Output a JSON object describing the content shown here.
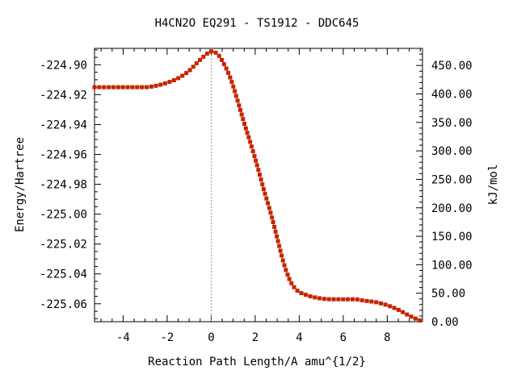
{
  "chart_data": {
    "type": "line",
    "title": "H4CN2O   EQ291 - TS1912 - DDC645",
    "xlabel": "Reaction Path Length/A amu^{1/2}",
    "ylabel": "Energy/Hartree",
    "y2label": "kJ/mol",
    "xlim": [
      -5.3,
      9.6
    ],
    "ylim": [
      -225.072,
      -224.889
    ],
    "y2lim": [
      0,
      480
    ],
    "x_ticks": [
      -4,
      -2,
      0,
      2,
      4,
      6,
      8
    ],
    "x_tick_labels": [
      "-4",
      "-2",
      "0",
      "2",
      "4",
      "6",
      "8"
    ],
    "y_ticks": [
      -224.9,
      -224.92,
      -224.94,
      -224.96,
      -224.98,
      -225.0,
      -225.02,
      -225.04,
      -225.06
    ],
    "y_tick_labels": [
      "-224.90",
      "-224.92",
      "-224.94",
      "-224.96",
      "-224.98",
      "-225.00",
      "-225.02",
      "-225.04",
      "-225.06"
    ],
    "y2_ticks": [
      450,
      400,
      350,
      300,
      250,
      200,
      150,
      100,
      50,
      0
    ],
    "y2_tick_labels": [
      "450.00",
      "400.00",
      "350.00",
      "300.00",
      "250.00",
      "200.00",
      "150.00",
      "100.00",
      "50.00",
      "0.00"
    ],
    "ts_marker_x": 0,
    "grid": false,
    "colors": {
      "line": "#00b000",
      "points": "#cc2200",
      "marker": "#999999"
    },
    "series": [
      {
        "curve": [
          [
            -5.3,
            -224.915
          ],
          [
            -4.0,
            -224.915
          ],
          [
            -3.0,
            -224.915
          ],
          [
            -2.5,
            -224.914
          ],
          [
            -2.0,
            -224.912
          ],
          [
            -1.5,
            -224.909
          ],
          [
            -1.0,
            -224.904
          ],
          [
            -0.6,
            -224.898
          ],
          [
            -0.3,
            -224.894
          ],
          [
            0.0,
            -224.891
          ],
          [
            0.3,
            -224.893
          ],
          [
            0.6,
            -224.9
          ],
          [
            0.9,
            -224.91
          ],
          [
            1.2,
            -224.924
          ],
          [
            1.5,
            -224.939
          ],
          [
            1.8,
            -224.953
          ],
          [
            2.1,
            -224.968
          ],
          [
            2.4,
            -224.984
          ],
          [
            2.7,
            -224.999
          ],
          [
            3.0,
            -225.016
          ],
          [
            3.3,
            -225.033
          ],
          [
            3.6,
            -225.045
          ],
          [
            3.9,
            -225.051
          ],
          [
            4.3,
            -225.054
          ],
          [
            4.8,
            -225.056
          ],
          [
            5.5,
            -225.057
          ],
          [
            6.0,
            -225.057
          ],
          [
            6.5,
            -225.057
          ],
          [
            7.0,
            -225.058
          ],
          [
            7.5,
            -225.059
          ],
          [
            8.0,
            -225.061
          ],
          [
            8.5,
            -225.064
          ],
          [
            9.0,
            -225.068
          ],
          [
            9.6,
            -225.072
          ]
        ]
      }
    ]
  }
}
